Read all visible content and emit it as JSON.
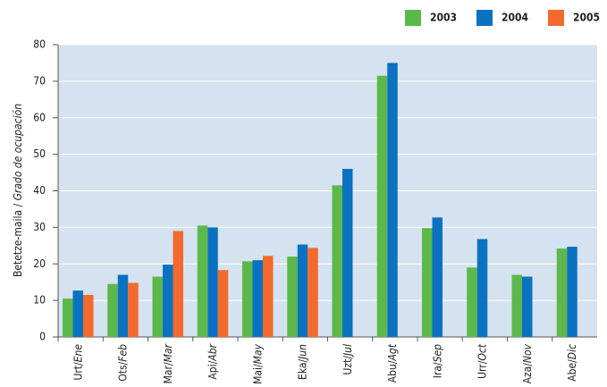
{
  "chart_data": {
    "type": "bar",
    "y_label": "Betetze-maila / Grado de ocupación",
    "categories": [
      "Urt/Ene",
      "Ots/Feb",
      "Mar/Mar",
      "Api/Abr",
      "Mai/May",
      "Eka/Jun",
      "Uzt/Jul",
      "Abu/Agt",
      "Ira/Sep",
      "Urr/Oct",
      "Aza/Nov",
      "Abe/Dic"
    ],
    "series": [
      {
        "name": "2003",
        "color": "#5cb84a",
        "values": [
          10.5,
          14.5,
          16.5,
          30.5,
          20.7,
          22,
          41.5,
          71.5,
          29.8,
          19,
          17,
          24.2
        ]
      },
      {
        "name": "2004",
        "color": "#0a72c0",
        "values": [
          12.7,
          17,
          19.8,
          30,
          21,
          25.3,
          46,
          75,
          32.7,
          26.8,
          16.5,
          24.7
        ]
      },
      {
        "name": "2005",
        "color": "#f26a2e",
        "values": [
          11.5,
          14.8,
          29,
          18.3,
          22.2,
          24.4,
          null,
          null,
          null,
          null,
          null,
          null
        ]
      }
    ],
    "ylim": [
      0,
      80
    ],
    "yticks": [
      0,
      10,
      20,
      30,
      40,
      50,
      60,
      70,
      80
    ],
    "grid": true,
    "legend": "top-right"
  }
}
